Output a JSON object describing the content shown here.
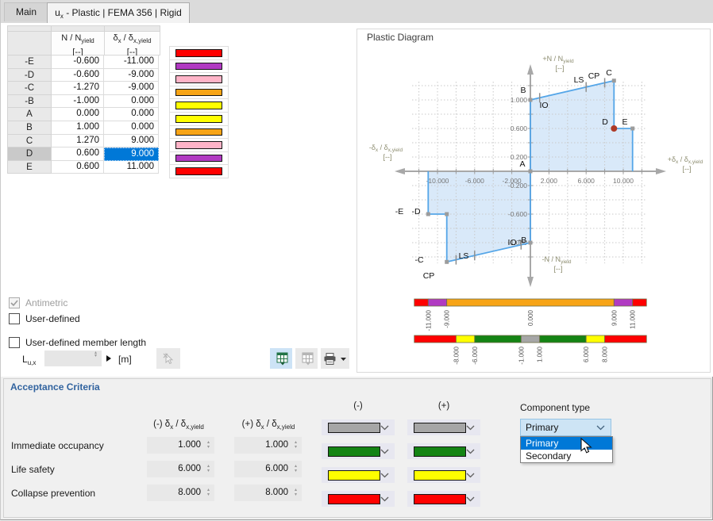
{
  "tabs": {
    "main": "Main",
    "active_pre": "u",
    "active_sub": "x",
    "active_rest": " - Plastic | FEMA 356 | Rigid"
  },
  "table": {
    "col_n": {
      "pre": "N / N",
      "sub": "yield",
      "unit": "[--]"
    },
    "col_d": {
      "pre": "δ",
      "sub": "x",
      "mid": " / δ",
      "sub2": "x,yield",
      "unit": "[--]"
    },
    "rows": [
      {
        "id": "-E",
        "n": "-0.600",
        "d": "-11.000"
      },
      {
        "id": "-D",
        "n": "-0.600",
        "d": "-9.000"
      },
      {
        "id": "-C",
        "n": "-1.270",
        "d": "-9.000"
      },
      {
        "id": "-B",
        "n": "-1.000",
        "d": "0.000"
      },
      {
        "id": "A",
        "n": "0.000",
        "d": "0.000"
      },
      {
        "id": "B",
        "n": "1.000",
        "d": "0.000"
      },
      {
        "id": "C",
        "n": "1.270",
        "d": "9.000"
      },
      {
        "id": "D",
        "n": "0.600",
        "d": "9.000"
      },
      {
        "id": "E",
        "n": "0.600",
        "d": "11.000"
      }
    ],
    "selected_row": "D",
    "selected_col": "d",
    "bar_colors": [
      "#ff0000",
      "#b13ac2",
      "#ffb4c8",
      "#f7a416",
      "#ffff00",
      "#ffff00",
      "#f7a416",
      "#ffb4c8",
      "#b13ac2",
      "#ff0000"
    ]
  },
  "options": {
    "antimetric": "Antimetric",
    "user_defined": "User-defined",
    "member_length": "User-defined member length",
    "lux_pre": "L",
    "lux_sub": "u,x",
    "lux_value": "",
    "lux_unit": "[m]"
  },
  "diagram_title": "Plastic Diagram",
  "chart_data": {
    "type": "line",
    "title": "Plastic Diagram",
    "x_axis": {
      "neg_label": [
        {
          "t": "-δ"
        },
        {
          "t": "x",
          "sub": true
        },
        {
          "t": " / δ"
        },
        {
          "t": "x,yield",
          "sub": true
        }
      ],
      "pos_label": [
        {
          "t": "+δ"
        },
        {
          "t": "x",
          "sub": true
        },
        {
          "t": " / δ"
        },
        {
          "t": "x,yield",
          "sub": true
        }
      ],
      "unit": "[--]",
      "range": [
        -12.7,
        12.7
      ],
      "ticks": [
        {
          "v": -10,
          "t": "-10.000"
        },
        {
          "v": -6,
          "t": "-6.000"
        },
        {
          "v": -2,
          "t": "-2.000"
        },
        {
          "v": 2,
          "t": "2.000"
        },
        {
          "v": 6,
          "t": "6.000"
        },
        {
          "v": 10,
          "t": "10.000"
        }
      ]
    },
    "y_axis": {
      "pos_label": [
        {
          "t": "+N / N"
        },
        {
          "t": "yield",
          "sub": true
        }
      ],
      "neg_label": [
        {
          "t": "-N / N"
        },
        {
          "t": "yield",
          "sub": true
        }
      ],
      "unit": "[--]",
      "range": [
        -1.45,
        1.45
      ],
      "ticks": [
        {
          "v": 1.0,
          "t": "1.000"
        },
        {
          "v": 0.6,
          "t": "0.600"
        },
        {
          "v": 0.2,
          "t": "0.200"
        },
        {
          "v": -0.2,
          "t": "-0.200"
        },
        {
          "v": -0.6,
          "t": "-0.600"
        },
        {
          "v": -1.0,
          "t": "-1.000"
        }
      ]
    },
    "grid": {
      "x_step": 2,
      "y_step": 0.2
    },
    "points": [
      {
        "id": "-E",
        "x": -11,
        "y": -0.6
      },
      {
        "id": "-D",
        "x": -9,
        "y": -0.6
      },
      {
        "id": "-C",
        "x": -9,
        "y": -1.27
      },
      {
        "id": "-B",
        "x": 0,
        "y": -1.0
      },
      {
        "id": "A",
        "x": 0,
        "y": 0
      },
      {
        "id": "B",
        "x": 0,
        "y": 1.0
      },
      {
        "id": "C",
        "x": 9,
        "y": 1.27
      },
      {
        "id": "D",
        "x": 9,
        "y": 0.6
      },
      {
        "id": "E",
        "x": 11,
        "y": 0.6
      }
    ],
    "selected_point": "D",
    "upper_outline": [
      [
        0,
        0
      ],
      [
        0,
        1.0
      ],
      [
        9,
        1.27
      ],
      [
        9,
        0.6
      ],
      [
        11,
        0.6
      ],
      [
        11,
        0
      ]
    ],
    "lower_outline": [
      [
        0,
        0
      ],
      [
        0,
        -1.0
      ],
      [
        -9,
        -1.27
      ],
      [
        -9,
        -0.6
      ],
      [
        -11,
        -0.6
      ],
      [
        -11,
        0
      ]
    ],
    "acceptance_marks": {
      "upper": [
        {
          "label": "IO",
          "x": 1
        },
        {
          "label": "LS",
          "x": 6
        },
        {
          "label": "CP",
          "x": 8
        }
      ],
      "lower": [
        {
          "label": "IO",
          "x": -1
        },
        {
          "label": "LS",
          "x": -6
        },
        {
          "label": "CP",
          "x": -8
        }
      ]
    },
    "fill_color": "#d9e9f9",
    "line_color": "#55a6e8",
    "marker_color": "#9c9c9c",
    "selected_marker_color": "#ad3a28",
    "colorbars": [
      {
        "segments": [
          {
            "from": -12.5,
            "to": -11,
            "color": "#ff0000"
          },
          {
            "from": -11,
            "to": -9,
            "color": "#b13ac2"
          },
          {
            "from": -9,
            "to": 9,
            "color": "#f7a416"
          },
          {
            "from": 9,
            "to": 11,
            "color": "#b13ac2"
          },
          {
            "from": 11,
            "to": 12.5,
            "color": "#ff0000"
          }
        ],
        "labels": [
          {
            "u": -11,
            "t": "-11.000"
          },
          {
            "u": -9,
            "t": "-9.000"
          },
          {
            "u": 0,
            "t": "0.000"
          },
          {
            "u": 9,
            "t": "9.000"
          },
          {
            "u": 11,
            "t": "11.000"
          }
        ]
      },
      {
        "segments": [
          {
            "from": -12.5,
            "to": -8,
            "color": "#ff0000"
          },
          {
            "from": -8,
            "to": -6,
            "color": "#ffff00"
          },
          {
            "from": -6,
            "to": -1,
            "color": "#148414"
          },
          {
            "from": -1,
            "to": 1,
            "color": "#a6a6a6"
          },
          {
            "from": 1,
            "to": 6,
            "color": "#148414"
          },
          {
            "from": 6,
            "to": 8,
            "color": "#ffff00"
          },
          {
            "from": 8,
            "to": 12.5,
            "color": "#ff0000"
          }
        ],
        "labels": [
          {
            "u": -8,
            "t": "-8.000"
          },
          {
            "u": -6,
            "t": "-6.000"
          },
          {
            "u": -1,
            "t": "-1.000"
          },
          {
            "u": 1,
            "t": "1.000"
          },
          {
            "u": 6,
            "t": "6.000"
          },
          {
            "u": 8,
            "t": "8.000"
          }
        ]
      }
    ]
  },
  "acceptance": {
    "title": "Acceptance Criteria",
    "hdr_minus": [
      {
        "t": "(-) δ"
      },
      {
        "t": "x",
        "sub": true
      },
      {
        "t": " / δ"
      },
      {
        "t": "x,yield",
        "sub": true
      }
    ],
    "hdr_plus": [
      {
        "t": "(+) δ"
      },
      {
        "t": "x",
        "sub": true
      },
      {
        "t": " / δ"
      },
      {
        "t": "x,yield",
        "sub": true
      }
    ],
    "col_minus": "(-)",
    "col_plus": "(+)",
    "rows": [
      {
        "label": "Immediate occupancy",
        "minus": "1.000",
        "plus": "1.000"
      },
      {
        "label": "Life safety",
        "minus": "6.000",
        "plus": "6.000"
      },
      {
        "label": "Collapse prevention",
        "minus": "8.000",
        "plus": "8.000"
      }
    ],
    "colors": [
      "#a6a6a6",
      "#148414",
      "#ffff00",
      "#ff0000"
    ],
    "component_type_label": "Component type",
    "component_type_value": "Primary",
    "component_options": [
      "Primary",
      "Secondary"
    ],
    "highlighted_option": "Primary"
  }
}
